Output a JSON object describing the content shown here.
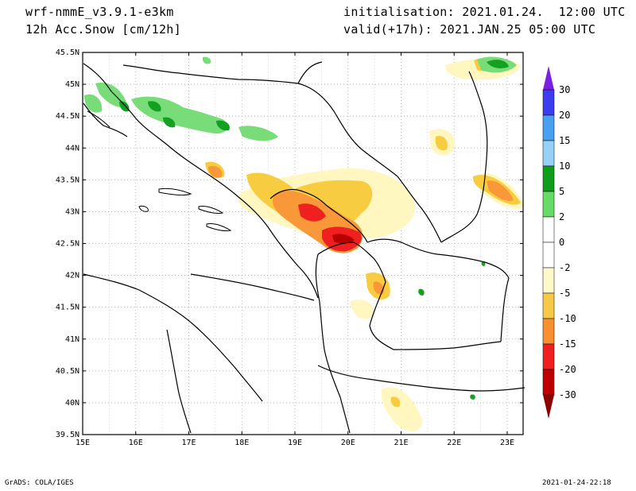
{
  "header": {
    "model": "wrf-nmmE_v3.9.1-e3km",
    "field": "12h Acc.Snow [cm/12h]",
    "init": "initialisation: 2021.01.24.  12:00 UTC",
    "valid": "valid(+17h): 2021.JAN.25 05:00 UTC"
  },
  "footer": {
    "left": "GrADS: COLA/IGES",
    "right": "2021-01-24-22:18"
  },
  "axes": {
    "lat_labels": [
      "45.5N",
      "45N",
      "44.5N",
      "44N",
      "43.5N",
      "43N",
      "42.5N",
      "42N",
      "41.5N",
      "41N",
      "40.5N",
      "40N",
      "39.5N"
    ],
    "lon_labels": [
      "15E",
      "16E",
      "17E",
      "18E",
      "19E",
      "20E",
      "21E",
      "22E",
      "23E"
    ],
    "lat_range": [
      39.5,
      45.5
    ],
    "lon_range": [
      15.0,
      23.3
    ],
    "grid": "dotted"
  },
  "colorbar": {
    "levels": [
      "30",
      "20",
      "15",
      "10",
      "5",
      "2",
      "0",
      "-2",
      "-5",
      "-10",
      "-15",
      "-20",
      "-30"
    ],
    "colors": [
      "#7b1fe0",
      "#3c3cf0",
      "#4aa0f0",
      "#96d2f8",
      "#0e9e1a",
      "#66dc66",
      "#ffffff",
      "#ffffff",
      "#fff8c8",
      "#f8c848",
      "#f89030",
      "#f02020",
      "#c00000",
      "#8c0000"
    ]
  },
  "palette": {
    "yellow_pale": "#fff6c0",
    "yellow": "#f8cc40",
    "orange": "#f89838",
    "red": "#f02020",
    "darkred": "#b80000",
    "green_light": "#78dc78",
    "green": "#14a020",
    "boundary": "#000000"
  }
}
